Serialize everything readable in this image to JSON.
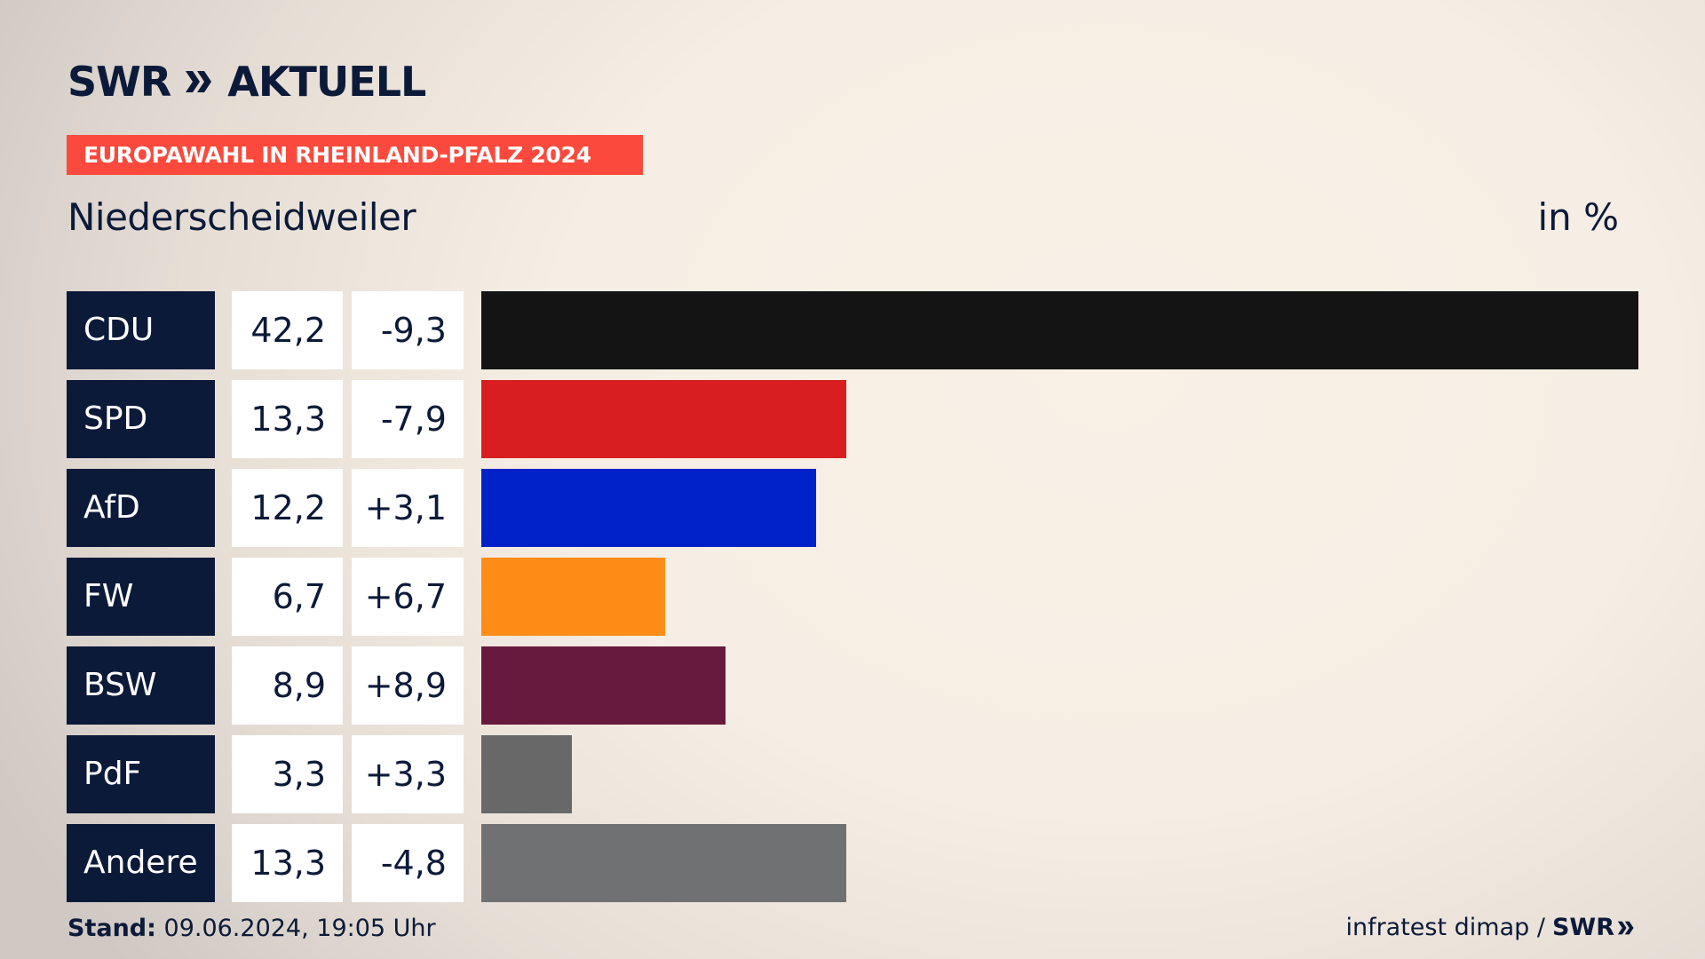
{
  "header": {
    "brand": "SWR",
    "brand_suffix": "AKTUELL",
    "banner": "EUROPAWAHL IN RHEINLAND-PFALZ 2024",
    "place": "Niederscheidweiler",
    "unit": "in %"
  },
  "footer": {
    "stand_label": "Stand:",
    "stand_value": "09.06.2024, 19:05 Uhr",
    "source": "infratest dimap /",
    "source_brand": "SWR"
  },
  "colors": {
    "navy": "#0c1a3a",
    "banner": "#fb4a3d"
  },
  "chart_data": {
    "type": "bar",
    "title": "Niederscheidweiler",
    "unit": "in %",
    "max_value": 42.2,
    "categories": [
      "CDU",
      "SPD",
      "AfD",
      "FW",
      "BSW",
      "PdF",
      "Andere"
    ],
    "values": [
      42.2,
      13.3,
      12.2,
      6.7,
      8.9,
      3.3,
      13.3
    ],
    "value_labels": [
      "42,2",
      "13,3",
      "12,2",
      "6,7",
      "8,9",
      "3,3",
      "13,3"
    ],
    "diffs": [
      -9.3,
      -7.9,
      3.1,
      6.7,
      8.9,
      3.3,
      -4.8
    ],
    "diff_labels": [
      "-9,3",
      "-7,9",
      "+3,1",
      "+6,7",
      "+8,9",
      "+3,3",
      "-4,8"
    ],
    "bar_colors": [
      "#141414",
      "#d81e20",
      "#0021c8",
      "#ff8c17",
      "#681a3e",
      "#686868",
      "#707172"
    ]
  }
}
